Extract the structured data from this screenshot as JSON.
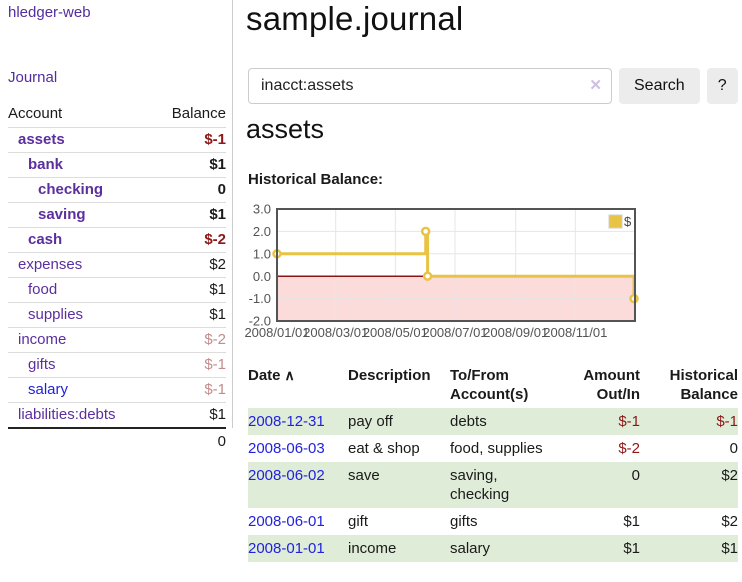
{
  "sidebar": {
    "brand": "hledger-web",
    "journal_label": "Journal",
    "accounts": {
      "header": {
        "account": "Account",
        "balance": "Balance"
      },
      "rows": [
        {
          "name": "assets",
          "balance": "$-1",
          "row_class": "depth-1 bold",
          "name_class": "",
          "val_class": "negative"
        },
        {
          "name": "bank",
          "balance": "$1",
          "row_class": "depth-2 bold",
          "name_class": "",
          "val_class": ""
        },
        {
          "name": "checking",
          "balance": "0",
          "row_class": "depth-3 bold",
          "name_class": "",
          "val_class": ""
        },
        {
          "name": "saving",
          "balance": "$1",
          "row_class": "depth-3 bold",
          "name_class": "",
          "val_class": ""
        },
        {
          "name": "cash",
          "balance": "$-2",
          "row_class": "depth-2 bold",
          "name_class": "",
          "val_class": "negative"
        },
        {
          "name": "expenses",
          "balance": "$2",
          "row_class": "depth-1",
          "name_class": "",
          "val_class": ""
        },
        {
          "name": "food",
          "balance": "$1",
          "row_class": "depth-2",
          "name_class": "",
          "val_class": ""
        },
        {
          "name": "supplies",
          "balance": "$1",
          "row_class": "depth-2",
          "name_class": "",
          "val_class": ""
        },
        {
          "name": "income",
          "balance": "$-2",
          "row_class": "depth-1",
          "name_class": "",
          "val_class": "muted"
        },
        {
          "name": "gifts",
          "balance": "$-1",
          "row_class": "depth-2",
          "name_class": "",
          "val_class": "muted"
        },
        {
          "name": "salary",
          "balance": "$-1",
          "row_class": "depth-2",
          "name_class": "blue",
          "val_class": "muted"
        },
        {
          "name": "liabilities:debts",
          "balance": "$1",
          "row_class": "depth-1",
          "name_class": "",
          "val_class": ""
        }
      ],
      "total": "0"
    }
  },
  "main": {
    "title": "sample.journal",
    "search": {
      "value": "inacct:assets",
      "clear_icon": "✕",
      "button_label": "Search",
      "help_label": "?"
    },
    "account_heading": "assets",
    "balance_label": "Historical Balance:"
  },
  "chart_data": {
    "type": "line",
    "step": true,
    "title": "Historical Balance",
    "xlabel": "",
    "ylabel": "",
    "series": [
      {
        "name": "$",
        "color": "#e9c343",
        "points": [
          [
            "2008-01-01",
            1
          ],
          [
            "2008-06-01",
            2
          ],
          [
            "2008-06-03",
            0
          ],
          [
            "2008-12-31",
            -1
          ]
        ]
      }
    ],
    "xlim": [
      "2008-01-01",
      "2009-01-01"
    ],
    "ylim": [
      -2,
      3
    ],
    "yticks": [
      3,
      2,
      1,
      0,
      -1,
      -2
    ],
    "xticks": [
      [
        "2008-01-01",
        "2008/01/01"
      ],
      [
        "2008-03-01",
        "2008/03/01"
      ],
      [
        "2008-05-01",
        "2008/05/01"
      ],
      [
        "2008-07-01",
        "2008/07/01"
      ],
      [
        "2008-09-01",
        "2008/09/01"
      ],
      [
        "2008-11-01",
        "2008/11/01"
      ]
    ],
    "grid": true,
    "legend_position": "top-right",
    "negative_region_fill": "#fcdbdb",
    "zero_line_color": "#8b1515"
  },
  "register": {
    "sort_icon": "∧",
    "headers": {
      "date": "Date",
      "description": "Description",
      "accounts_line1": "To/From",
      "accounts_line2": "Account(s)",
      "amount_line1": "Amount",
      "amount_line2": "Out/In",
      "balance_line1": "Historical",
      "balance_line2": "Balance"
    },
    "rows": [
      {
        "date": "2008-12-31",
        "description": "pay off",
        "accounts": "debts",
        "amount": "$-1",
        "amount_class": "negative",
        "balance": "$-1",
        "balance_class": "negative"
      },
      {
        "date": "2008-06-03",
        "description": "eat & shop",
        "accounts": "food, supplies",
        "amount": "$-2",
        "amount_class": "negative",
        "balance": "0",
        "balance_class": ""
      },
      {
        "date": "2008-06-02",
        "description": "save",
        "accounts": "saving, checking",
        "amount": "0",
        "amount_class": "",
        "balance": "$2",
        "balance_class": ""
      },
      {
        "date": "2008-06-01",
        "description": "gift",
        "accounts": "gifts",
        "amount": "$1",
        "amount_class": "",
        "balance": "$2",
        "balance_class": ""
      },
      {
        "date": "2008-01-01",
        "description": "income",
        "accounts": "salary",
        "amount": "$1",
        "amount_class": "",
        "balance": "$1",
        "balance_class": ""
      }
    ]
  }
}
